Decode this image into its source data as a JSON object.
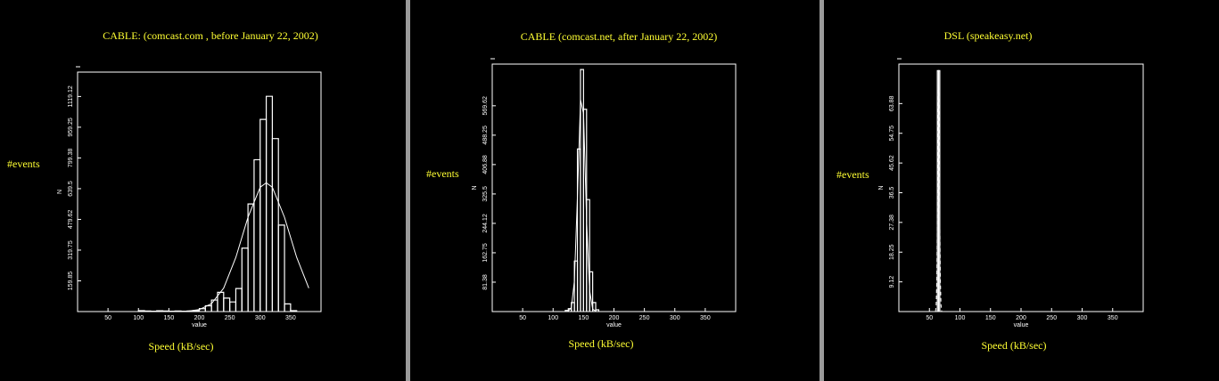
{
  "chart_data": [
    {
      "type": "histogram",
      "title": "CABLE:   (comcast.com , before January 22, 2002)",
      "caption_y": "#events",
      "caption_x": "Speed (kB/sec)",
      "ylabel": "N",
      "xlabel": "value",
      "bins": [
        100,
        110,
        120,
        130,
        140,
        150,
        160,
        170,
        180,
        190,
        200,
        210,
        220,
        230,
        240,
        250,
        260,
        270,
        280,
        290,
        300,
        310,
        320,
        330,
        340,
        350,
        360
      ],
      "values": [
        5,
        3,
        2,
        4,
        3,
        2,
        3,
        2,
        3,
        5,
        15,
        30,
        60,
        100,
        70,
        50,
        120,
        330,
        560,
        790,
        1000,
        1120,
        900,
        450,
        40,
        5
      ],
      "fit": {
        "x": [
          180,
          200,
          220,
          240,
          260,
          280,
          300,
          310,
          320,
          340,
          360,
          380
        ],
        "values": [
          2,
          10,
          41,
          122,
          282,
          491,
          647,
          670,
          647,
          491,
          282,
          122
        ],
        "dashed": false
      },
      "xlim": [
        0,
        400
      ],
      "ylim": [
        0,
        1246
      ],
      "xticks": [
        50,
        100,
        150,
        200,
        250,
        300,
        350
      ],
      "yticks": [
        159.85,
        319.75,
        479.62,
        639.5,
        799.38,
        959.25,
        1119.12
      ],
      "color": "#ffffff"
    },
    {
      "type": "histogram",
      "title": "CABLE (comcast.net, after January 22, 2002)",
      "caption_y": "#events",
      "caption_x": "Speed (kB/sec)",
      "ylabel": "N",
      "xlabel": "value",
      "bins": [
        120,
        125,
        130,
        135,
        140,
        145,
        150,
        155,
        160,
        165,
        170,
        175
      ],
      "values": [
        3,
        8,
        25,
        140,
        450,
        670,
        560,
        310,
        110,
        25,
        5
      ],
      "fit": {
        "x": [
          125,
          130,
          135,
          140,
          145,
          150,
          155,
          160,
          165,
          170
        ],
        "values": [
          1,
          11,
          84,
          314,
          587,
          547,
          254,
          59,
          7,
          1
        ],
        "dashed": false
      },
      "xlim": [
        0,
        400
      ],
      "ylim": [
        0,
        685
      ],
      "xticks": [
        50,
        100,
        150,
        200,
        250,
        300,
        350
      ],
      "yticks": [
        81.38,
        162.75,
        244.12,
        325.5,
        406.88,
        488.25,
        569.62
      ],
      "color": "#ffffff"
    },
    {
      "type": "histogram",
      "title": "DSL (speakeasy.net)",
      "caption_y": "#events",
      "caption_x": "Speed (kB/sec)",
      "ylabel": "N",
      "xlabel": "value",
      "bins": [
        63,
        65,
        67
      ],
      "values": [
        74,
        74
      ],
      "fit": {
        "x": [
          60,
          61,
          62,
          63,
          64,
          65,
          66,
          67,
          68,
          69,
          70
        ],
        "values": [
          0,
          2,
          9,
          29,
          56,
          70,
          56,
          29,
          9,
          2,
          0
        ],
        "dashed": true
      },
      "xlim": [
        0,
        400
      ],
      "ylim": [
        0,
        76
      ],
      "xticks": [
        50,
        100,
        150,
        200,
        250,
        300,
        350
      ],
      "yticks": [
        9.12,
        18.25,
        27.38,
        36.5,
        45.62,
        54.75,
        63.88
      ],
      "color": "#ffffff"
    }
  ]
}
